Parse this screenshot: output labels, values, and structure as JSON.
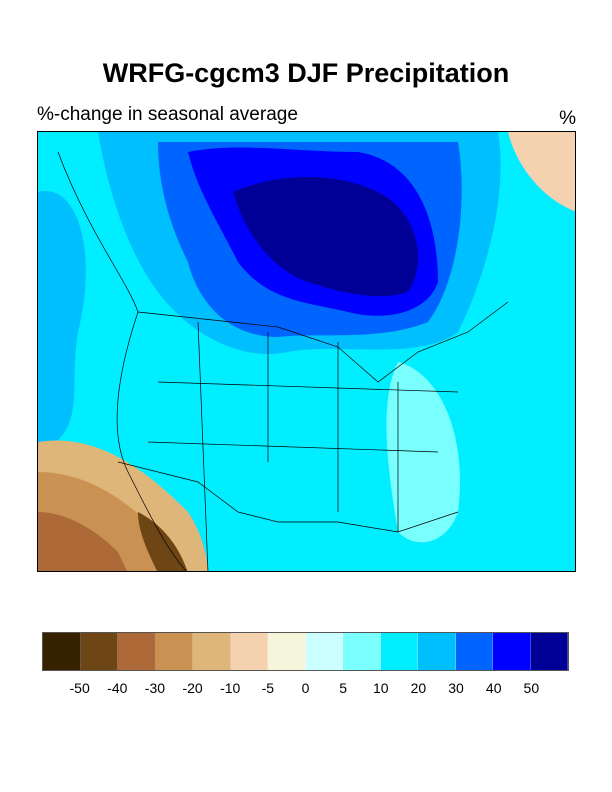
{
  "title": "WRFG-cgcm3 DJF Precipitation",
  "subtitle_left": "%-change in seasonal average",
  "subtitle_right": "%",
  "map": {
    "region": "North America",
    "variable": "DJF precipitation % change",
    "colors": {
      "background": "#00eeff",
      "strong_increase": "#000096",
      "increase": "#0000ff",
      "moderate_increase": "#0064ff",
      "decrease": "#c99252",
      "strong_decrease": "#6e4515"
    }
  },
  "colorbar": {
    "colors": [
      "#372200",
      "#6e4515",
      "#ad6a38",
      "#c99252",
      "#dfb67a",
      "#f4d2b0",
      "#f5f5dc",
      "#ccffff",
      "#7affff",
      "#00eeff",
      "#00bfff",
      "#0064ff",
      "#0000ff",
      "#000096"
    ],
    "labels": [
      "-50",
      "-40",
      "-30",
      "-20",
      "-10",
      "-5",
      "0",
      "5",
      "10",
      "20",
      "30",
      "40",
      "50"
    ]
  }
}
